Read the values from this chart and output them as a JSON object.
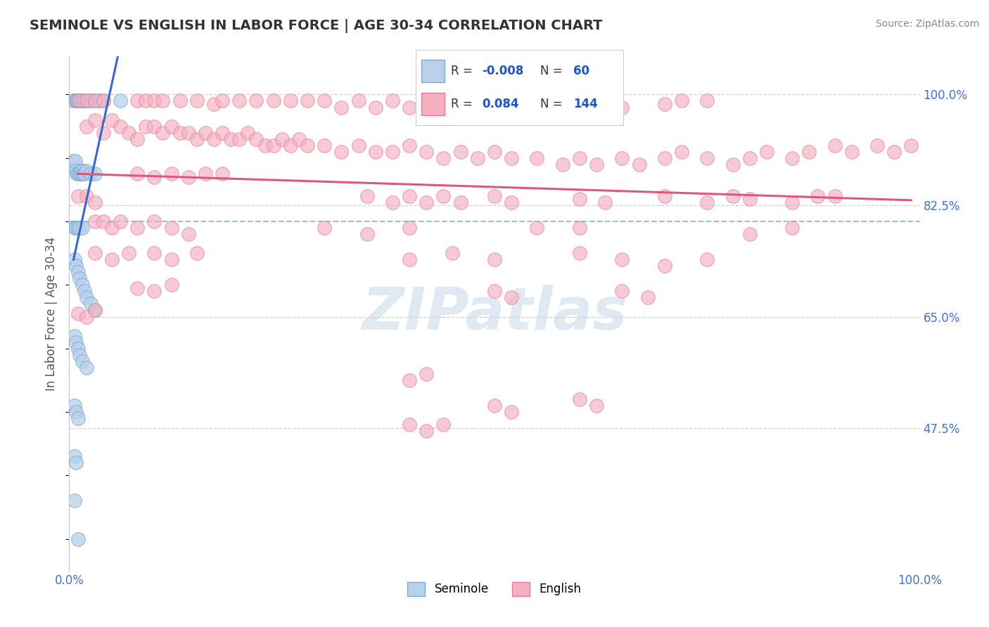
{
  "title": "SEMINOLE VS ENGLISH IN LABOR FORCE | AGE 30-34 CORRELATION CHART",
  "source": "Source: ZipAtlas.com",
  "ylabel": "In Labor Force | Age 30-34",
  "xlim": [
    0.0,
    1.0
  ],
  "ylim": [
    0.25,
    1.06
  ],
  "x_tick_labels": [
    "0.0%",
    "100.0%"
  ],
  "y_tick_labels": [
    "47.5%",
    "65.0%",
    "82.5%",
    "100.0%"
  ],
  "y_tick_values": [
    0.475,
    0.65,
    0.825,
    1.0
  ],
  "seminole_color": "#b8d0ea",
  "english_color": "#f4b0c0",
  "seminole_edge": "#7aa8d8",
  "english_edge": "#e87898",
  "trend_seminole_color": "#3a68c8",
  "trend_english_color": "#e05878",
  "dashed_line_color": "#8aacce",
  "watermark_color": "#c8d8e8",
  "background_color": "#ffffff",
  "grid_color": "#d0d0d0",
  "tick_color": "#4472c4",
  "title_color": "#333333",
  "source_color": "#888888",
  "ylabel_color": "#555555",
  "legend_R_color": "#2255bb",
  "legend_N_color": "#2255bb",
  "seminole_points": [
    [
      0.005,
      0.99
    ],
    [
      0.007,
      0.99
    ],
    [
      0.008,
      0.99
    ],
    [
      0.009,
      0.99
    ],
    [
      0.01,
      0.99
    ],
    [
      0.011,
      0.99
    ],
    [
      0.012,
      0.99
    ],
    [
      0.013,
      0.99
    ],
    [
      0.014,
      0.99
    ],
    [
      0.015,
      0.99
    ],
    [
      0.016,
      0.99
    ],
    [
      0.017,
      0.99
    ],
    [
      0.02,
      0.99
    ],
    [
      0.022,
      0.99
    ],
    [
      0.025,
      0.99
    ],
    [
      0.03,
      0.99
    ],
    [
      0.035,
      0.99
    ],
    [
      0.04,
      0.99
    ],
    [
      0.06,
      0.99
    ],
    [
      0.005,
      0.895
    ],
    [
      0.007,
      0.895
    ],
    [
      0.008,
      0.88
    ],
    [
      0.009,
      0.875
    ],
    [
      0.01,
      0.875
    ],
    [
      0.012,
      0.875
    ],
    [
      0.013,
      0.875
    ],
    [
      0.014,
      0.88
    ],
    [
      0.015,
      0.875
    ],
    [
      0.016,
      0.88
    ],
    [
      0.017,
      0.875
    ],
    [
      0.018,
      0.875
    ],
    [
      0.02,
      0.88
    ],
    [
      0.025,
      0.875
    ],
    [
      0.03,
      0.875
    ],
    [
      0.006,
      0.79
    ],
    [
      0.008,
      0.79
    ],
    [
      0.01,
      0.79
    ],
    [
      0.012,
      0.79
    ],
    [
      0.015,
      0.79
    ],
    [
      0.006,
      0.74
    ],
    [
      0.008,
      0.73
    ],
    [
      0.01,
      0.72
    ],
    [
      0.012,
      0.71
    ],
    [
      0.015,
      0.7
    ],
    [
      0.018,
      0.69
    ],
    [
      0.02,
      0.68
    ],
    [
      0.025,
      0.67
    ],
    [
      0.03,
      0.66
    ],
    [
      0.006,
      0.62
    ],
    [
      0.008,
      0.61
    ],
    [
      0.01,
      0.6
    ],
    [
      0.012,
      0.59
    ],
    [
      0.015,
      0.58
    ],
    [
      0.02,
      0.57
    ],
    [
      0.006,
      0.51
    ],
    [
      0.008,
      0.5
    ],
    [
      0.01,
      0.49
    ],
    [
      0.006,
      0.43
    ],
    [
      0.008,
      0.42
    ],
    [
      0.006,
      0.36
    ],
    [
      0.01,
      0.3
    ]
  ],
  "english_points": [
    [
      0.01,
      0.99
    ],
    [
      0.02,
      0.99
    ],
    [
      0.03,
      0.99
    ],
    [
      0.04,
      0.99
    ],
    [
      0.08,
      0.99
    ],
    [
      0.09,
      0.99
    ],
    [
      0.1,
      0.99
    ],
    [
      0.11,
      0.99
    ],
    [
      0.13,
      0.99
    ],
    [
      0.15,
      0.99
    ],
    [
      0.17,
      0.985
    ],
    [
      0.18,
      0.99
    ],
    [
      0.2,
      0.99
    ],
    [
      0.22,
      0.99
    ],
    [
      0.24,
      0.99
    ],
    [
      0.26,
      0.99
    ],
    [
      0.28,
      0.99
    ],
    [
      0.3,
      0.99
    ],
    [
      0.32,
      0.98
    ],
    [
      0.34,
      0.99
    ],
    [
      0.36,
      0.98
    ],
    [
      0.38,
      0.99
    ],
    [
      0.4,
      0.98
    ],
    [
      0.42,
      0.99
    ],
    [
      0.44,
      0.99
    ],
    [
      0.46,
      0.99
    ],
    [
      0.47,
      0.99
    ],
    [
      0.55,
      0.98
    ],
    [
      0.6,
      0.98
    ],
    [
      0.62,
      0.99
    ],
    [
      0.65,
      0.98
    ],
    [
      0.7,
      0.985
    ],
    [
      0.72,
      0.99
    ],
    [
      0.75,
      0.99
    ],
    [
      0.02,
      0.95
    ],
    [
      0.03,
      0.96
    ],
    [
      0.04,
      0.94
    ],
    [
      0.05,
      0.96
    ],
    [
      0.06,
      0.95
    ],
    [
      0.07,
      0.94
    ],
    [
      0.08,
      0.93
    ],
    [
      0.09,
      0.95
    ],
    [
      0.1,
      0.95
    ],
    [
      0.11,
      0.94
    ],
    [
      0.12,
      0.95
    ],
    [
      0.13,
      0.94
    ],
    [
      0.14,
      0.94
    ],
    [
      0.15,
      0.93
    ],
    [
      0.16,
      0.94
    ],
    [
      0.17,
      0.93
    ],
    [
      0.18,
      0.94
    ],
    [
      0.19,
      0.93
    ],
    [
      0.2,
      0.93
    ],
    [
      0.21,
      0.94
    ],
    [
      0.22,
      0.93
    ],
    [
      0.23,
      0.92
    ],
    [
      0.24,
      0.92
    ],
    [
      0.25,
      0.93
    ],
    [
      0.26,
      0.92
    ],
    [
      0.27,
      0.93
    ],
    [
      0.28,
      0.92
    ],
    [
      0.3,
      0.92
    ],
    [
      0.32,
      0.91
    ],
    [
      0.34,
      0.92
    ],
    [
      0.36,
      0.91
    ],
    [
      0.38,
      0.91
    ],
    [
      0.4,
      0.92
    ],
    [
      0.42,
      0.91
    ],
    [
      0.44,
      0.9
    ],
    [
      0.46,
      0.91
    ],
    [
      0.48,
      0.9
    ],
    [
      0.5,
      0.91
    ],
    [
      0.52,
      0.9
    ],
    [
      0.55,
      0.9
    ],
    [
      0.58,
      0.89
    ],
    [
      0.6,
      0.9
    ],
    [
      0.62,
      0.89
    ],
    [
      0.65,
      0.9
    ],
    [
      0.67,
      0.89
    ],
    [
      0.7,
      0.9
    ],
    [
      0.72,
      0.91
    ],
    [
      0.75,
      0.9
    ],
    [
      0.78,
      0.89
    ],
    [
      0.8,
      0.9
    ],
    [
      0.82,
      0.91
    ],
    [
      0.85,
      0.9
    ],
    [
      0.87,
      0.91
    ],
    [
      0.9,
      0.92
    ],
    [
      0.92,
      0.91
    ],
    [
      0.95,
      0.92
    ],
    [
      0.97,
      0.91
    ],
    [
      0.99,
      0.92
    ],
    [
      0.08,
      0.875
    ],
    [
      0.1,
      0.87
    ],
    [
      0.12,
      0.875
    ],
    [
      0.14,
      0.87
    ],
    [
      0.16,
      0.875
    ],
    [
      0.18,
      0.875
    ],
    [
      0.01,
      0.84
    ],
    [
      0.02,
      0.84
    ],
    [
      0.03,
      0.83
    ],
    [
      0.35,
      0.84
    ],
    [
      0.38,
      0.83
    ],
    [
      0.4,
      0.84
    ],
    [
      0.42,
      0.83
    ],
    [
      0.44,
      0.84
    ],
    [
      0.46,
      0.83
    ],
    [
      0.5,
      0.84
    ],
    [
      0.52,
      0.83
    ],
    [
      0.6,
      0.835
    ],
    [
      0.63,
      0.83
    ],
    [
      0.7,
      0.84
    ],
    [
      0.75,
      0.83
    ],
    [
      0.78,
      0.84
    ],
    [
      0.8,
      0.835
    ],
    [
      0.85,
      0.83
    ],
    [
      0.88,
      0.84
    ],
    [
      0.9,
      0.84
    ],
    [
      0.03,
      0.8
    ],
    [
      0.04,
      0.8
    ],
    [
      0.05,
      0.79
    ],
    [
      0.06,
      0.8
    ],
    [
      0.08,
      0.79
    ],
    [
      0.1,
      0.8
    ],
    [
      0.12,
      0.79
    ],
    [
      0.14,
      0.78
    ],
    [
      0.3,
      0.79
    ],
    [
      0.35,
      0.78
    ],
    [
      0.4,
      0.79
    ],
    [
      0.55,
      0.79
    ],
    [
      0.6,
      0.79
    ],
    [
      0.8,
      0.78
    ],
    [
      0.85,
      0.79
    ],
    [
      0.03,
      0.75
    ],
    [
      0.05,
      0.74
    ],
    [
      0.07,
      0.75
    ],
    [
      0.1,
      0.75
    ],
    [
      0.12,
      0.74
    ],
    [
      0.15,
      0.75
    ],
    [
      0.4,
      0.74
    ],
    [
      0.45,
      0.75
    ],
    [
      0.5,
      0.74
    ],
    [
      0.6,
      0.75
    ],
    [
      0.65,
      0.74
    ],
    [
      0.7,
      0.73
    ],
    [
      0.75,
      0.74
    ],
    [
      0.08,
      0.695
    ],
    [
      0.1,
      0.69
    ],
    [
      0.12,
      0.7
    ],
    [
      0.5,
      0.69
    ],
    [
      0.52,
      0.68
    ],
    [
      0.65,
      0.69
    ],
    [
      0.68,
      0.68
    ],
    [
      0.01,
      0.655
    ],
    [
      0.02,
      0.65
    ],
    [
      0.03,
      0.66
    ],
    [
      0.4,
      0.55
    ],
    [
      0.42,
      0.56
    ],
    [
      0.5,
      0.51
    ],
    [
      0.52,
      0.5
    ],
    [
      0.6,
      0.52
    ],
    [
      0.62,
      0.51
    ],
    [
      0.4,
      0.48
    ],
    [
      0.42,
      0.47
    ],
    [
      0.44,
      0.48
    ]
  ]
}
